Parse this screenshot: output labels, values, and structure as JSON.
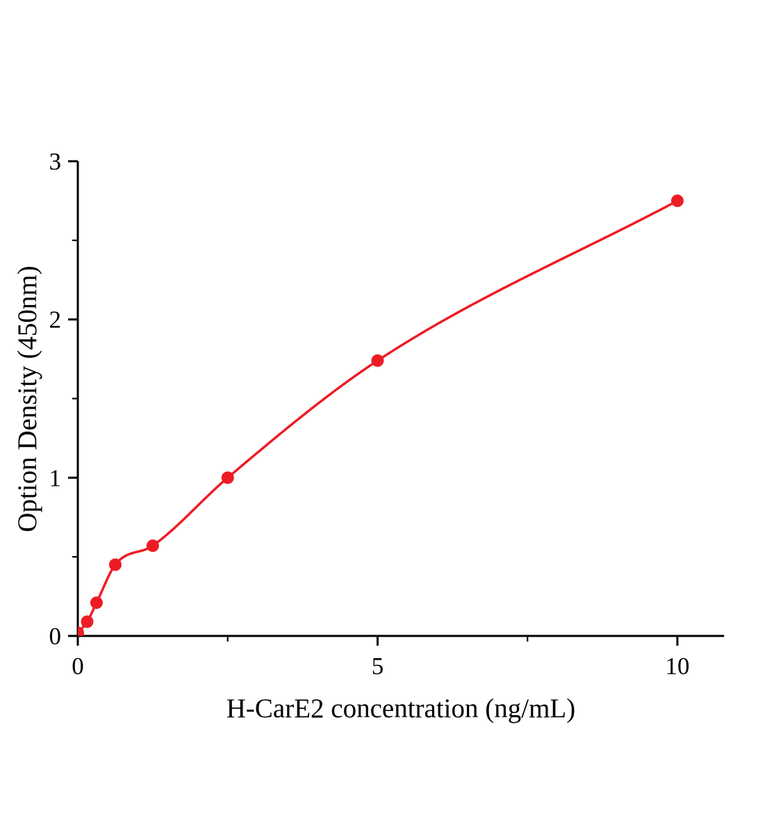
{
  "figure": {
    "background": "#ffffff",
    "axis_color": "#000000"
  },
  "chart_data": {
    "type": "scatter",
    "title": "",
    "xlabel": "H-CarE2 concentration (ng/mL)",
    "ylabel": "Option Density (450nm)",
    "xlim": [
      0,
      10.78
    ],
    "ylim": [
      0,
      3
    ],
    "grid": false,
    "legend": null,
    "series_color": "#ed1c24",
    "marker_radius": 9,
    "x_axis": {
      "major": [
        {
          "value": 0,
          "label": "0"
        },
        {
          "value": 5,
          "label": "5"
        },
        {
          "value": 10,
          "label": "10"
        }
      ],
      "minor": [
        2.5,
        7.5
      ]
    },
    "y_axis": {
      "major": [
        {
          "value": 0,
          "label": "0"
        },
        {
          "value": 1,
          "label": "1"
        },
        {
          "value": 2,
          "label": "2"
        },
        {
          "value": 3,
          "label": "3"
        }
      ],
      "minor": [
        0.5,
        1.5,
        2.5
      ]
    },
    "points": [
      {
        "x": 0,
        "y": 0.02
      },
      {
        "x": 0.156,
        "y": 0.09
      },
      {
        "x": 0.3125,
        "y": 0.21
      },
      {
        "x": 0.625,
        "y": 0.45
      },
      {
        "x": 1.25,
        "y": 0.57
      },
      {
        "x": 2.5,
        "y": 1.0
      },
      {
        "x": 5,
        "y": 1.74
      },
      {
        "x": 10,
        "y": 2.75
      }
    ],
    "curve": "smooth monotone fit through points"
  }
}
